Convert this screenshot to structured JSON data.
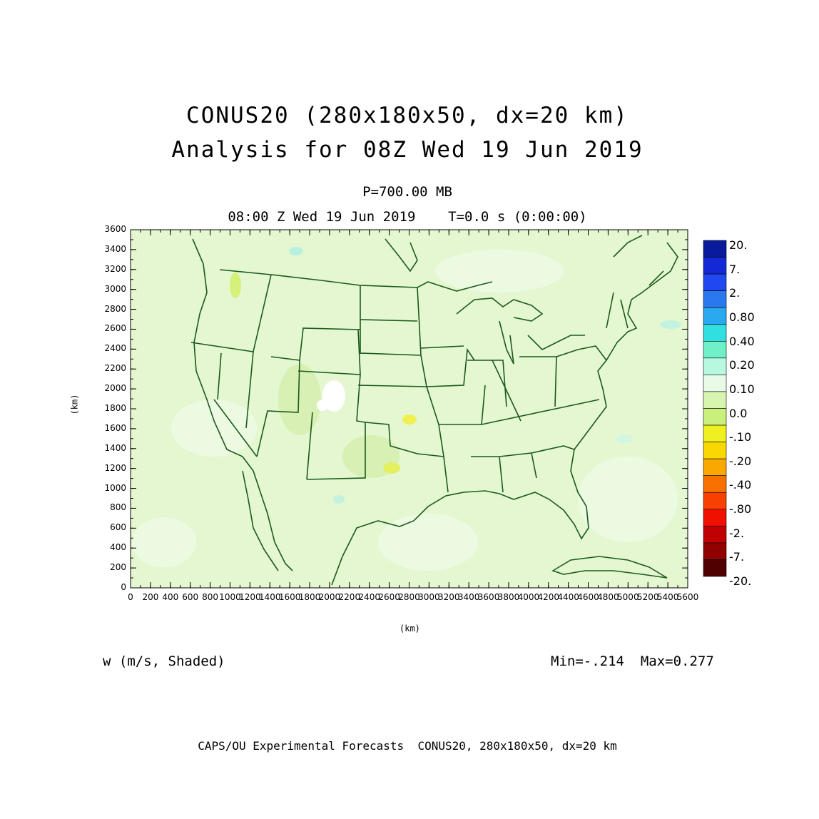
{
  "title_line1": "CONUS20 (280x180x50, dx=20 km)",
  "title_line2": "Analysis for 08Z Wed 19 Jun 2019",
  "level": "P=700.00 MB",
  "valid_time": "08:00 Z Wed 19 Jun 2019    T=0.0 s (0:00:00)",
  "axis_unit_label": "(km)",
  "variable_label": "w (m/s, Shaded)",
  "min_max": "Min=-.214  Max=0.277",
  "footer": "CAPS/OU Experimental Forecasts  CONUS20, 280x180x50, dx=20 km",
  "x_ticks": [
    "0",
    "200",
    "400",
    "600",
    "800",
    "1000",
    "1200",
    "1400",
    "1600",
    "1800",
    "2000",
    "2200",
    "2400",
    "2600",
    "2800",
    "3000",
    "3200",
    "3400",
    "3600",
    "3800",
    "4000",
    "4200",
    "4400",
    "4600",
    "4800",
    "5000",
    "5200",
    "5400",
    "5600"
  ],
  "y_ticks": [
    "0",
    "200",
    "400",
    "600",
    "800",
    "1000",
    "1200",
    "1400",
    "1600",
    "1800",
    "2000",
    "2200",
    "2400",
    "2600",
    "2800",
    "3000",
    "3200",
    "3400",
    "3600"
  ],
  "x_range_km": [
    0,
    5600
  ],
  "y_range_km": [
    0,
    3600
  ],
  "colorbar": {
    "labels": [
      "20.",
      "7.",
      "2.",
      "0.80",
      "0.40",
      "0.20",
      "0.10",
      "0.0",
      "-.10",
      "-.20",
      "-.40",
      "-.80",
      "-2.",
      "-7.",
      "-20."
    ],
    "colors": [
      "#0a1a9c",
      "#1428d6",
      "#1f48f0",
      "#2a78f0",
      "#2aa8f0",
      "#30e0e0",
      "#70f0c8",
      "#b8f8e0",
      "#e8fbe8",
      "#d8f5b0",
      "#c8f07a",
      "#f0f020",
      "#f8d800",
      "#f8a800",
      "#f87000",
      "#f84000",
      "#f01000",
      "#c00000",
      "#900000",
      "#500000"
    ]
  },
  "colors": {
    "background_field": "#e4f7d0",
    "outline": "#1b5a1b"
  }
}
